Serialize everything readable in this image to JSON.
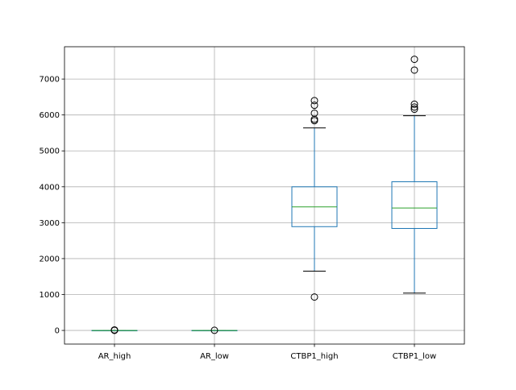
{
  "chart_data": {
    "type": "boxplot",
    "title": "",
    "xlabel": "",
    "ylabel": "",
    "grid": true,
    "ylim": [
      -380,
      7900
    ],
    "yticks": [
      0,
      1000,
      2000,
      3000,
      4000,
      5000,
      6000,
      7000
    ],
    "categories": [
      "AR_high",
      "AR_low",
      "CTBP1_high",
      "CTBP1_low"
    ],
    "boxes": [
      {
        "name": "AR_high",
        "whisker_low": 0,
        "q1": 0,
        "median": 0,
        "q3": 0,
        "whisker_high": 0,
        "outliers": [
          2,
          8,
          14
        ]
      },
      {
        "name": "AR_low",
        "whisker_low": 0,
        "q1": 0,
        "median": 0,
        "q3": 0,
        "whisker_high": 0,
        "outliers": [
          3
        ]
      },
      {
        "name": "CTBP1_high",
        "whisker_low": 1650,
        "q1": 2890,
        "median": 3440,
        "q3": 4000,
        "whisker_high": 5640,
        "outliers": [
          930,
          5840,
          5880,
          6050,
          6270,
          6400
        ]
      },
      {
        "name": "CTBP1_low",
        "whisker_low": 1040,
        "q1": 2840,
        "median": 3410,
        "q3": 4140,
        "whisker_high": 5980,
        "outliers": [
          6160,
          6220,
          6300,
          7250,
          7550
        ]
      }
    ],
    "colors": {
      "box": "#1f77b4",
      "median": "#2ca02c",
      "whisker_cap": "#000000",
      "grid": "#b0b0b0"
    }
  }
}
